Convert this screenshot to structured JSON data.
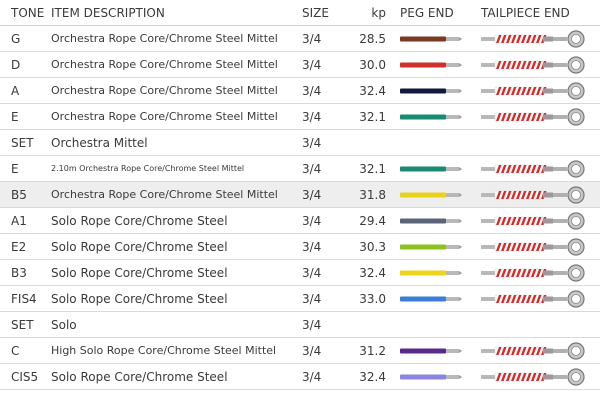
{
  "header": {
    "tone": "TONE",
    "description": "ITEM DESCRIPTION",
    "size": "SIZE",
    "kp": "kp",
    "peg_end": "PEG END",
    "tailpiece_end": "TAILPIECE END"
  },
  "rows": [
    {
      "tone": "G",
      "description": "Orchestra Rope Core/Chrome Steel Mittel",
      "size": "3/4",
      "kp": "28.5",
      "peg_color": "#7a3a22",
      "has_string": true,
      "shaded": false,
      "desc_size": "normal"
    },
    {
      "tone": "D",
      "description": "Orchestra Rope Core/Chrome Steel Mittel",
      "size": "3/4",
      "kp": "30.0",
      "peg_color": "#d0302a",
      "has_string": true,
      "shaded": false,
      "desc_size": "normal"
    },
    {
      "tone": "A",
      "description": "Orchestra Rope Core/Chrome Steel Mittel",
      "size": "3/4",
      "kp": "32.4",
      "peg_color": "#111a3a",
      "has_string": true,
      "shaded": false,
      "desc_size": "normal"
    },
    {
      "tone": "E",
      "description": "Orchestra Rope Core/Chrome Steel Mittel",
      "size": "3/4",
      "kp": "32.1",
      "peg_color": "#1a8a72",
      "has_string": true,
      "shaded": false,
      "desc_size": "normal"
    },
    {
      "tone": "SET",
      "description": "Orchestra Mittel",
      "size": "3/4",
      "kp": "",
      "peg_color": "",
      "has_string": false,
      "shaded": false,
      "desc_size": "big"
    },
    {
      "tone": "E",
      "description": "2.10m Orchestra Rope Core/Chrome Steel Mittel",
      "size": "3/4",
      "kp": "32.1",
      "peg_color": "#1a8a72",
      "has_string": true,
      "shaded": false,
      "desc_size": "small"
    },
    {
      "tone": "B5",
      "description": "Orchestra Rope Core/Chrome Steel Mittel",
      "size": "3/4",
      "kp": "31.8",
      "peg_color": "#e8d21c",
      "has_string": true,
      "shaded": true,
      "desc_size": "normal"
    },
    {
      "tone": "A1",
      "description": "Solo Rope Core/Chrome Steel",
      "size": "3/4",
      "kp": "29.4",
      "peg_color": "#5a6478",
      "has_string": true,
      "shaded": false,
      "desc_size": "big"
    },
    {
      "tone": "E2",
      "description": "Solo Rope Core/Chrome Steel",
      "size": "3/4",
      "kp": "30.3",
      "peg_color": "#8cc21e",
      "has_string": true,
      "shaded": false,
      "desc_size": "big"
    },
    {
      "tone": "B3",
      "description": "Solo Rope Core/Chrome Steel",
      "size": "3/4",
      "kp": "32.4",
      "peg_color": "#f0d41a",
      "has_string": true,
      "shaded": false,
      "desc_size": "big"
    },
    {
      "tone": "FIS4",
      "description": "Solo Rope Core/Chrome Steel",
      "size": "3/4",
      "kp": "33.0",
      "peg_color": "#3a7ed8",
      "has_string": true,
      "shaded": false,
      "desc_size": "big"
    },
    {
      "tone": "SET",
      "description": "Solo",
      "size": "3/4",
      "kp": "",
      "peg_color": "",
      "has_string": false,
      "shaded": false,
      "desc_size": "big"
    },
    {
      "tone": "C",
      "description": "High Solo Rope Core/Chrome Steel Mittel",
      "size": "3/4",
      "kp": "31.2",
      "peg_color": "#5a2a8a",
      "has_string": true,
      "shaded": false,
      "desc_size": "normal"
    },
    {
      "tone": "CIS5",
      "description": "Solo Rope Core/Chrome Steel",
      "size": "3/4",
      "kp": "32.4",
      "peg_color": "#8c84e0",
      "has_string": true,
      "shaded": false,
      "desc_size": "big"
    }
  ]
}
